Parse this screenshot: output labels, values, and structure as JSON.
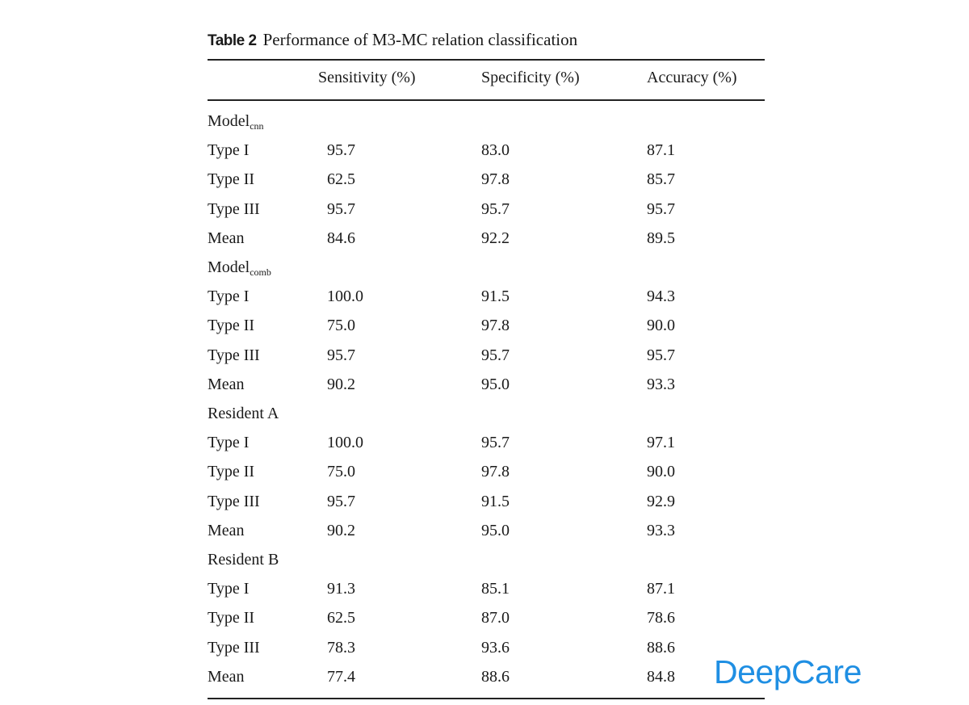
{
  "caption": {
    "label": "Table 2",
    "title": "Performance of M3-MC relation classification"
  },
  "columns": [
    "",
    "Sensitivity (%)",
    "Specificity (%)",
    "Accuracy (%)"
  ],
  "groups": [
    {
      "name": "Model",
      "name_sub": "cnn",
      "rows": [
        {
          "type": "Type I",
          "sensitivity": "95.7",
          "specificity": "83.0",
          "accuracy": "87.1"
        },
        {
          "type": "Type II",
          "sensitivity": "62.5",
          "specificity": "97.8",
          "accuracy": "85.7"
        },
        {
          "type": "Type III",
          "sensitivity": "95.7",
          "specificity": "95.7",
          "accuracy": "95.7"
        },
        {
          "type": "Mean",
          "sensitivity": "84.6",
          "specificity": "92.2",
          "accuracy": "89.5"
        }
      ]
    },
    {
      "name": "Model",
      "name_sub": "comb",
      "rows": [
        {
          "type": "Type I",
          "sensitivity": "100.0",
          "specificity": "91.5",
          "accuracy": "94.3"
        },
        {
          "type": "Type II",
          "sensitivity": "75.0",
          "specificity": "97.8",
          "accuracy": "90.0"
        },
        {
          "type": "Type III",
          "sensitivity": "95.7",
          "specificity": "95.7",
          "accuracy": "95.7"
        },
        {
          "type": "Mean",
          "sensitivity": "90.2",
          "specificity": "95.0",
          "accuracy": "93.3"
        }
      ]
    },
    {
      "name": "Resident A",
      "name_sub": "",
      "rows": [
        {
          "type": "Type I",
          "sensitivity": "100.0",
          "specificity": "95.7",
          "accuracy": "97.1"
        },
        {
          "type": "Type II",
          "sensitivity": "75.0",
          "specificity": "97.8",
          "accuracy": "90.0"
        },
        {
          "type": "Type III",
          "sensitivity": "95.7",
          "specificity": "91.5",
          "accuracy": "92.9"
        },
        {
          "type": "Mean",
          "sensitivity": "90.2",
          "specificity": "95.0",
          "accuracy": "93.3"
        }
      ]
    },
    {
      "name": "Resident B",
      "name_sub": "",
      "rows": [
        {
          "type": "Type I",
          "sensitivity": "91.3",
          "specificity": "85.1",
          "accuracy": "87.1"
        },
        {
          "type": "Type II",
          "sensitivity": "62.5",
          "specificity": "87.0",
          "accuracy": "78.6"
        },
        {
          "type": "Type III",
          "sensitivity": "78.3",
          "specificity": "93.6",
          "accuracy": "88.6"
        },
        {
          "type": "Mean",
          "sensitivity": "77.4",
          "specificity": "88.6",
          "accuracy": "84.8"
        }
      ]
    }
  ],
  "watermark": {
    "text": "DeepCare",
    "color": "#1f8fe3"
  }
}
